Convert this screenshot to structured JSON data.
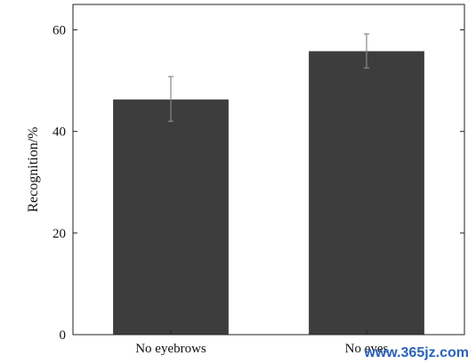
{
  "chart_data": {
    "type": "bar",
    "categories": [
      "No eyebrows",
      "No eyes"
    ],
    "values": [
      46.3,
      55.8
    ],
    "error_low": [
      42.0,
      52.5
    ],
    "error_high": [
      50.8,
      59.2
    ],
    "ylabel": "Recognition/%",
    "xlabel": "",
    "ylim": [
      0,
      65
    ],
    "yticks": [
      0,
      20,
      40,
      60
    ],
    "bar_color": "#3d3d3d",
    "error_color": "#888888",
    "grid": false
  },
  "watermark": "www.365jz.com"
}
